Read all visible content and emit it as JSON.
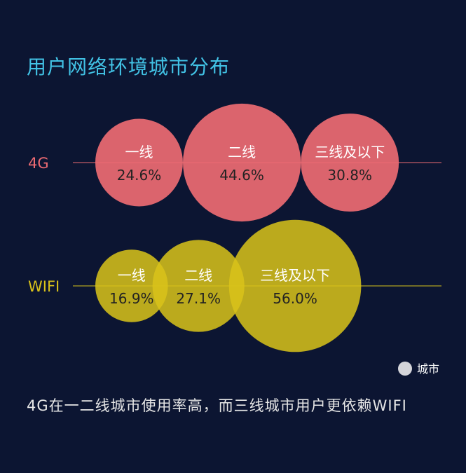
{
  "title": "用户网络环境城市分布",
  "summary": "4G在一二线城市使用率高，而三线城市用户更依赖WIFI",
  "colors": {
    "background": "#0c1532",
    "title": "#42c3e6",
    "4G": "#ec6a72",
    "WIFI": "#d9c21a",
    "legend_marker": "#d5d5da",
    "bubble_text": "#222222"
  },
  "chart_data": {
    "type": "bubble",
    "categories": [
      "一线",
      "二线",
      "三线及以下"
    ],
    "series": [
      {
        "name": "4G",
        "values": [
          24.6,
          44.6,
          30.8
        ],
        "labels": [
          "24.6%",
          "44.6%",
          "30.8%"
        ]
      },
      {
        "name": "WIFI",
        "values": [
          16.9,
          27.1,
          56.0
        ],
        "labels": [
          "16.9%",
          "27.1%",
          "56.0%"
        ]
      }
    ],
    "unit": "%",
    "legend": {
      "label": "城市",
      "placement": "bottom-right"
    }
  }
}
